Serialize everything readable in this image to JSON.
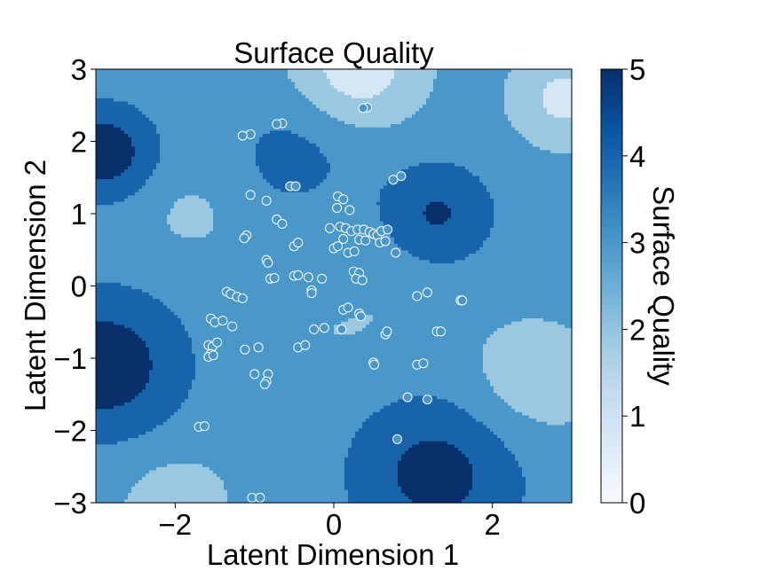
{
  "chart_data": {
    "type": "contour",
    "title": "Surface Quality",
    "xlabel": "Latent Dimension 1",
    "ylabel": "Latent Dimension 2",
    "xlim": [
      -3,
      3
    ],
    "ylim": [
      -3,
      3
    ],
    "xticks": [
      {
        "v": -2,
        "label": "−2"
      },
      {
        "v": 0,
        "label": "0"
      },
      {
        "v": 2,
        "label": "2"
      }
    ],
    "yticks": [
      {
        "v": -3,
        "label": "−3"
      },
      {
        "v": -2,
        "label": "−2"
      },
      {
        "v": -1,
        "label": "−1"
      },
      {
        "v": 0,
        "label": "0"
      },
      {
        "v": 1,
        "label": "1"
      },
      {
        "v": 2,
        "label": "2"
      },
      {
        "v": 3,
        "label": "3"
      }
    ],
    "colorbar": {
      "label": "Surface Quality",
      "range": [
        0,
        5
      ],
      "ticks": [
        0,
        1,
        2,
        3,
        4,
        5
      ],
      "colormap": [
        "#f7fbff",
        "#deebf7",
        "#c6dbef",
        "#9ecae1",
        "#6baed6",
        "#4292c6",
        "#2171b5",
        "#08519c",
        "#08306b"
      ]
    },
    "contour_levels": [
      {
        "range": [
          1,
          2
        ],
        "color": "#d6e6f4"
      },
      {
        "range": [
          2,
          3
        ],
        "color": "#9ac8e0"
      },
      {
        "range": [
          3,
          4
        ],
        "color": "#4a98c9"
      },
      {
        "range": [
          4,
          5
        ],
        "color": "#1764ab"
      },
      {
        "range": [
          5,
          6
        ],
        "color": "#08306b"
      }
    ],
    "contour_surface": [
      {
        "x": 0,
        "y": 0,
        "amp": 0.6,
        "s": 0.35
      },
      {
        "x": -2.9,
        "y": 1.85,
        "amp": 2.3,
        "s": 0.45
      },
      {
        "x": 1.3,
        "y": 1.0,
        "amp": 1.7,
        "s": 0.5
      },
      {
        "x": -2.9,
        "y": -1.1,
        "amp": 2.3,
        "s": 0.7
      },
      {
        "x": 1.3,
        "y": -2.6,
        "amp": 2.0,
        "s": 0.75
      },
      {
        "x": -0.5,
        "y": 1.8,
        "amp": 0.9,
        "s": 0.6
      },
      {
        "x": 0.3,
        "y": 3.0,
        "amp": -2.0,
        "s": 0.55
      },
      {
        "x": 2.9,
        "y": 2.6,
        "amp": -1.7,
        "s": 0.45
      },
      {
        "x": 2.5,
        "y": -1.3,
        "amp": -1.1,
        "s": 0.6
      },
      {
        "x": -2.0,
        "y": -3.0,
        "amp": -1.0,
        "s": 0.5
      },
      {
        "x": 0.1,
        "y": -0.2,
        "amp": -0.7,
        "s": 0.6
      },
      {
        "x": -1.8,
        "y": 1.0,
        "amp": -0.6,
        "s": 0.45
      }
    ],
    "series": [
      {
        "points": [
          [
            -1.05,
            2.1
          ],
          [
            -1.15,
            2.08
          ],
          [
            -0.65,
            2.25
          ],
          [
            -0.72,
            2.24
          ],
          [
            0.42,
            2.47
          ],
          [
            0.37,
            2.46
          ],
          [
            -0.55,
            1.38
          ],
          [
            -0.48,
            1.38
          ],
          [
            -1.05,
            1.26
          ],
          [
            -0.85,
            1.18
          ],
          [
            0.05,
            1.24
          ],
          [
            0.12,
            1.2
          ],
          [
            0.2,
            1.05
          ],
          [
            0.04,
            1.08
          ],
          [
            0.75,
            1.47
          ],
          [
            0.85,
            1.52
          ],
          [
            -0.72,
            0.92
          ],
          [
            -0.65,
            0.86
          ],
          [
            -1.1,
            0.7
          ],
          [
            -1.13,
            0.66
          ],
          [
            -0.5,
            0.55
          ],
          [
            -0.45,
            0.6
          ],
          [
            -0.05,
            0.8
          ],
          [
            0.08,
            0.82
          ],
          [
            0.15,
            0.8
          ],
          [
            0.22,
            0.76
          ],
          [
            0.3,
            0.78
          ],
          [
            0.38,
            0.78
          ],
          [
            0.45,
            0.75
          ],
          [
            0.5,
            0.72
          ],
          [
            0.55,
            0.7
          ],
          [
            0.6,
            0.76
          ],
          [
            0.68,
            0.78
          ],
          [
            0.12,
            0.65
          ],
          [
            0.32,
            0.64
          ],
          [
            0.4,
            0.63
          ],
          [
            0.58,
            0.6
          ],
          [
            0.65,
            0.62
          ],
          [
            0.0,
            0.52
          ],
          [
            0.05,
            0.55
          ],
          [
            0.18,
            0.46
          ],
          [
            0.26,
            0.48
          ],
          [
            0.78,
            0.46
          ],
          [
            -0.85,
            0.36
          ],
          [
            -0.83,
            0.32
          ],
          [
            -0.8,
            0.1
          ],
          [
            -0.75,
            0.11
          ],
          [
            -0.5,
            0.14
          ],
          [
            -0.45,
            0.15
          ],
          [
            -0.32,
            0.12
          ],
          [
            -0.15,
            0.1
          ],
          [
            0.25,
            0.2
          ],
          [
            0.32,
            0.18
          ],
          [
            0.28,
            0.1
          ],
          [
            0.36,
            0.08
          ],
          [
            -1.35,
            -0.08
          ],
          [
            -1.3,
            -0.11
          ],
          [
            -1.22,
            -0.15
          ],
          [
            -1.15,
            -0.17
          ],
          [
            -0.28,
            -0.06
          ],
          [
            -0.28,
            -0.1
          ],
          [
            1.05,
            -0.14
          ],
          [
            1.18,
            -0.09
          ],
          [
            1.6,
            -0.2
          ],
          [
            1.62,
            -0.2
          ],
          [
            -1.55,
            -0.45
          ],
          [
            -1.5,
            -0.5
          ],
          [
            -1.4,
            -0.48
          ],
          [
            -1.28,
            -0.56
          ],
          [
            0.12,
            -0.33
          ],
          [
            0.18,
            -0.3
          ],
          [
            0.32,
            -0.38
          ],
          [
            0.34,
            -0.42
          ],
          [
            -0.25,
            -0.6
          ],
          [
            -0.12,
            -0.58
          ],
          [
            0.1,
            -0.6
          ],
          [
            0.65,
            -0.67
          ],
          [
            0.67,
            -0.63
          ],
          [
            1.3,
            -0.63
          ],
          [
            1.35,
            -0.63
          ],
          [
            -1.58,
            -0.82
          ],
          [
            -1.53,
            -0.84
          ],
          [
            -1.47,
            -0.78
          ],
          [
            -1.55,
            -0.94
          ],
          [
            -1.58,
            -0.98
          ],
          [
            -1.52,
            -0.96
          ],
          [
            -1.12,
            -0.88
          ],
          [
            -0.95,
            -0.85
          ],
          [
            -0.45,
            -0.85
          ],
          [
            -0.36,
            -0.82
          ],
          [
            0.5,
            -1.06
          ],
          [
            0.51,
            -1.09
          ],
          [
            1.05,
            -1.09
          ],
          [
            1.13,
            -1.07
          ],
          [
            -1.0,
            -1.22
          ],
          [
            -0.83,
            -1.22
          ],
          [
            -0.85,
            -1.32
          ],
          [
            -0.87,
            -1.36
          ],
          [
            0.93,
            -1.54
          ],
          [
            1.18,
            -1.57
          ],
          [
            -1.7,
            -1.95
          ],
          [
            -1.63,
            -1.94
          ],
          [
            0.8,
            -2.12
          ],
          [
            -1.03,
            -2.93
          ],
          [
            -0.93,
            -2.93
          ]
        ]
      }
    ]
  }
}
